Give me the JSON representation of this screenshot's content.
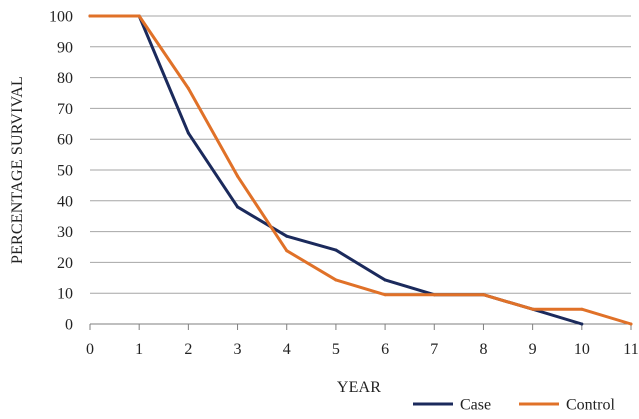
{
  "chart_data": {
    "type": "line",
    "title": "",
    "xlabel": "YEAR",
    "ylabel": "PERCENTAGE SURVIVAL",
    "x": [
      0,
      1,
      2,
      3,
      4,
      5,
      6,
      7,
      8,
      9,
      10,
      11
    ],
    "xlim": [
      0,
      11
    ],
    "ylim": [
      0,
      100
    ],
    "yticks": [
      0,
      10,
      20,
      30,
      40,
      50,
      60,
      70,
      80,
      90,
      100
    ],
    "grid": "horizontal",
    "legend_position": "bottom-right",
    "series": [
      {
        "name": "Case",
        "color": "#1b2a5c",
        "x": [
          0,
          1,
          2,
          3,
          4,
          5,
          6,
          7,
          8,
          9,
          10
        ],
        "values": [
          100,
          100,
          62,
          38,
          28.5,
          24,
          14.3,
          9.5,
          9.5,
          4.8,
          0
        ]
      },
      {
        "name": "Control",
        "color": "#e07128",
        "x": [
          0,
          1,
          2,
          3,
          4,
          5,
          6,
          7,
          8,
          9,
          10,
          11
        ],
        "values": [
          100,
          100,
          76.5,
          48,
          23.8,
          14.3,
          9.5,
          9.5,
          9.5,
          4.8,
          4.8,
          0
        ]
      }
    ]
  }
}
